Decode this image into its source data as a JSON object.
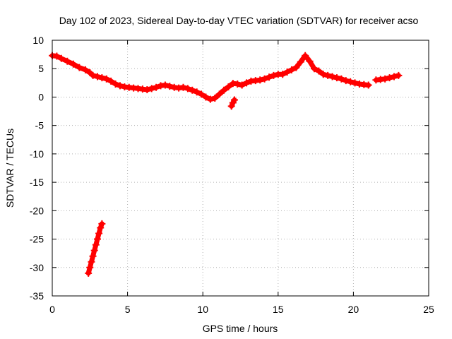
{
  "chart_data": {
    "type": "scatter",
    "title": "Day 102 of 2023, Sidereal Day-to-day VTEC variation (SDTVAR) for receiver acso",
    "xlabel": "GPS time / hours",
    "ylabel": "SDTVAR / TECUs",
    "xlim": [
      0,
      25
    ],
    "ylim": [
      -35,
      10
    ],
    "xticks": [
      0,
      5,
      10,
      15,
      20,
      25
    ],
    "yticks": [
      10,
      5,
      0,
      -5,
      -10,
      -15,
      -20,
      -25,
      -30,
      -35
    ],
    "grid": true,
    "series": [
      {
        "name": "SDTVAR",
        "color": "#ff0000",
        "marker": "plus",
        "segments": [
          {
            "x": [
              0.0,
              0.3,
              0.6,
              1.0,
              1.4,
              1.8,
              2.2,
              2.5,
              2.7,
              3.0,
              3.3,
              3.6,
              3.9,
              4.2,
              4.5,
              4.8,
              5.1,
              5.4,
              5.7,
              6.0,
              6.3,
              6.6,
              6.9,
              7.2,
              7.5,
              7.8,
              8.1,
              8.4,
              8.7,
              9.0,
              9.3,
              9.6,
              9.9,
              10.2,
              10.5,
              10.8,
              11.1,
              11.4,
              11.7,
              12.0,
              12.3,
              12.6,
              12.9,
              13.2,
              13.5,
              13.8,
              14.1,
              14.4,
              14.7,
              15.0,
              15.3,
              15.6,
              15.9,
              16.2,
              16.5,
              16.8,
              17.1,
              17.4,
              17.7,
              18.0,
              18.3,
              18.6,
              18.9,
              19.2,
              19.5,
              19.8,
              20.1,
              20.4,
              20.7,
              21.0
            ],
            "y": [
              7.3,
              7.2,
              6.8,
              6.3,
              5.8,
              5.2,
              4.8,
              4.3,
              3.8,
              3.6,
              3.4,
              3.2,
              2.8,
              2.3,
              2.0,
              1.8,
              1.7,
              1.6,
              1.5,
              1.4,
              1.3,
              1.5,
              1.7,
              2.0,
              2.1,
              1.9,
              1.7,
              1.6,
              1.7,
              1.5,
              1.2,
              0.9,
              0.5,
              0.0,
              -0.4,
              -0.2,
              0.5,
              1.2,
              1.8,
              2.4,
              2.3,
              2.1,
              2.5,
              2.8,
              2.9,
              3.0,
              3.2,
              3.5,
              3.8,
              4.0,
              4.0,
              4.4,
              4.8,
              5.2,
              6.2,
              7.3,
              6.3,
              5.0,
              4.6,
              4.0,
              3.8,
              3.6,
              3.4,
              3.2,
              2.9,
              2.7,
              2.5,
              2.3,
              2.2,
              2.1
            ]
          },
          {
            "x": [
              12.1,
              12.0,
              11.9
            ],
            "y": [
              -0.5,
              -1.0,
              -1.6
            ]
          },
          {
            "x": [
              21.5,
              21.8,
              22.1,
              22.4,
              22.7,
              23.0
            ],
            "y": [
              3.0,
              3.1,
              3.2,
              3.4,
              3.6,
              3.8
            ]
          },
          {
            "x": [
              2.4,
              2.5,
              2.6,
              2.7,
              2.8,
              2.9,
              3.0,
              3.1,
              3.2,
              3.3
            ],
            "y": [
              -31.0,
              -30.0,
              -29.0,
              -28.0,
              -27.0,
              -26.0,
              -25.0,
              -24.0,
              -23.0,
              -22.3
            ]
          }
        ]
      }
    ]
  }
}
